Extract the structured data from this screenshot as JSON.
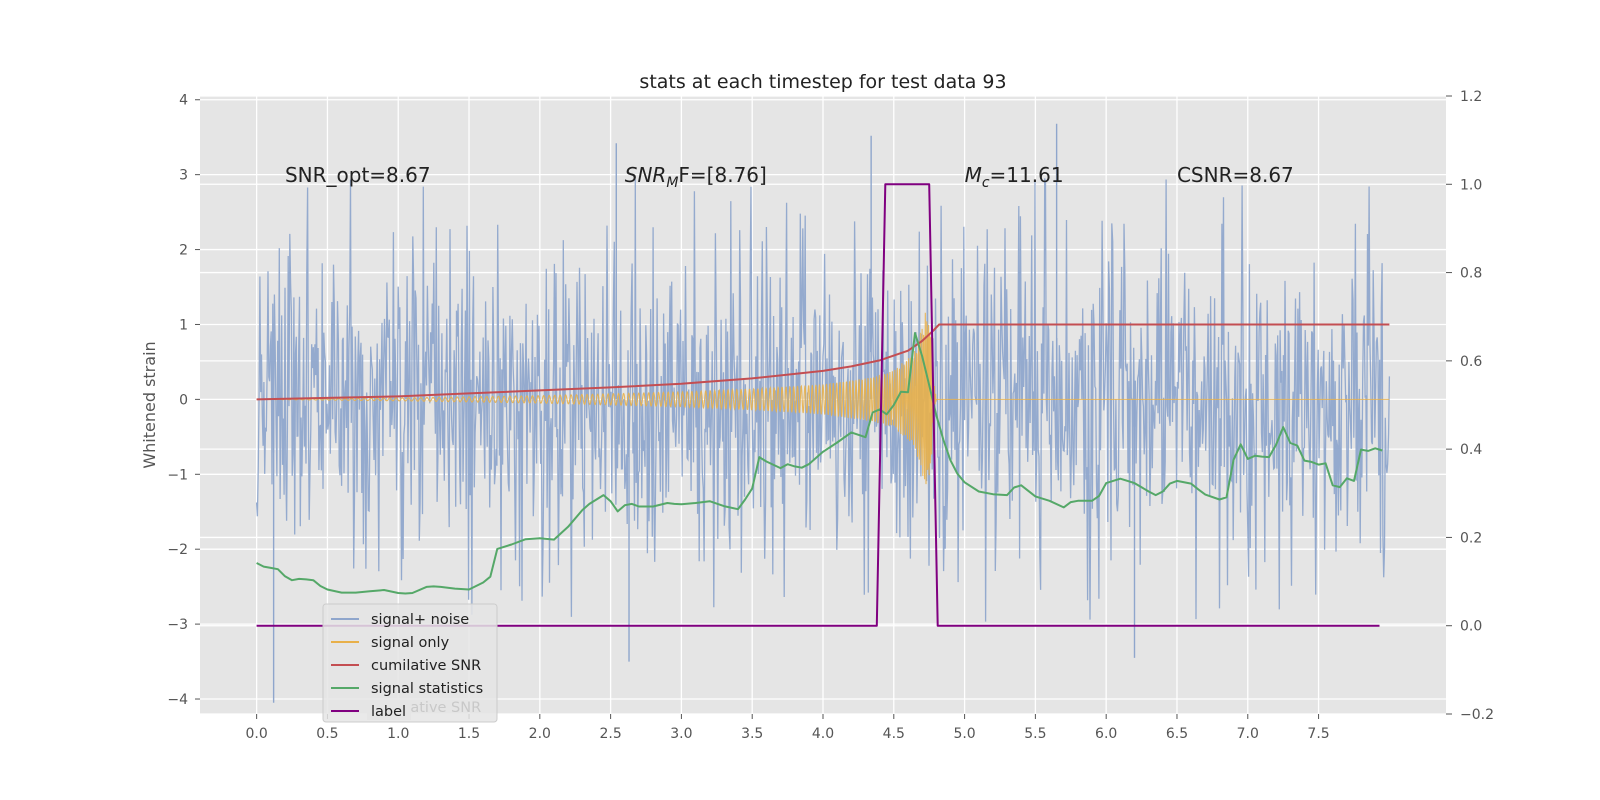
{
  "chart_data": {
    "type": "line",
    "title": "stats at each timestep for test data 93",
    "ylabel": "Whitened strain",
    "xlim": [
      -0.4,
      8.4
    ],
    "ylim": [
      -4.2,
      4.05
    ],
    "y2lim": [
      -0.2,
      1.2
    ],
    "xticks": [
      0.0,
      0.5,
      1.0,
      1.5,
      2.0,
      2.5,
      3.0,
      3.5,
      4.0,
      4.5,
      5.0,
      5.5,
      6.0,
      6.5,
      7.0,
      7.5
    ],
    "yticks": [
      -4,
      -3,
      -2,
      -1,
      0,
      1,
      2,
      3,
      4
    ],
    "y2ticks": [
      -0.2,
      0.0,
      0.2,
      0.4,
      0.6,
      0.8,
      1.0,
      1.2
    ],
    "grid": true,
    "legend_position": "lower-left",
    "annotations": [
      {
        "text": "SNR_opt=8.67",
        "x": 0.2,
        "y": 2.9
      },
      {
        "text": "F=[8.76]",
        "math_base": "SNR",
        "math_sub": "M",
        "x": 2.6,
        "y": 2.9
      },
      {
        "text": "=11.61",
        "math_base": "M",
        "math_sub": "c",
        "x": 5.0,
        "y": 2.9
      },
      {
        "text": "CSNR=8.67",
        "x": 6.5,
        "y": 2.9
      }
    ],
    "series": [
      {
        "name": "signal+ noise",
        "axis": "left",
        "color": "#8fa6cc",
        "noise_band": [
          -2.0,
          2.0
        ],
        "x_range": [
          0.0,
          8.0
        ],
        "outliers": [
          {
            "x": 0.12,
            "y": -4.05
          },
          {
            "x": 2.54,
            "y": 3.42
          },
          {
            "x": 4.34,
            "y": 3.52
          },
          {
            "x": 5.65,
            "y": 3.68
          },
          {
            "x": 6.2,
            "y": -3.45
          },
          {
            "x": 2.63,
            "y": -3.5
          }
        ]
      },
      {
        "name": "signal only",
        "axis": "left",
        "color": "#e8b04a",
        "envelope_x": [
          1.0,
          2.0,
          3.0,
          3.5,
          4.0,
          4.3,
          4.5,
          4.65,
          4.75,
          4.78,
          4.8,
          8.0
        ],
        "envelope_y": [
          0.02,
          0.05,
          0.1,
          0.14,
          0.2,
          0.28,
          0.38,
          0.65,
          1.35,
          0.3,
          0.0,
          0.0
        ]
      },
      {
        "name": "cumilative SNR",
        "axis": "left",
        "color": "#c44e52",
        "x": [
          0.0,
          0.5,
          1.0,
          1.5,
          2.0,
          2.5,
          3.0,
          3.5,
          4.0,
          4.2,
          4.4,
          4.6,
          4.7,
          4.78,
          4.82,
          8.0
        ],
        "y": [
          0.0,
          0.02,
          0.04,
          0.08,
          0.12,
          0.16,
          0.21,
          0.28,
          0.38,
          0.44,
          0.52,
          0.65,
          0.78,
          0.92,
          1.0,
          1.0
        ]
      },
      {
        "name": "signal statistics",
        "axis": "right",
        "color": "#55a868",
        "x": [
          0.0,
          0.05,
          0.1,
          0.15,
          0.2,
          0.25,
          0.3,
          0.35,
          0.4,
          0.45,
          0.5,
          0.6,
          0.7,
          0.8,
          0.9,
          1.0,
          1.05,
          1.1,
          1.2,
          1.25,
          1.3,
          1.4,
          1.5,
          1.6,
          1.65,
          1.7,
          1.8,
          1.9,
          2.0,
          2.1,
          2.2,
          2.3,
          2.35,
          2.45,
          2.5,
          2.55,
          2.6,
          2.65,
          2.7,
          2.8,
          2.9,
          2.95,
          3.0,
          3.1,
          3.2,
          3.3,
          3.4,
          3.45,
          3.5,
          3.55,
          3.6,
          3.7,
          3.75,
          3.8,
          3.85,
          3.9,
          4.0,
          4.1,
          4.2,
          4.3,
          4.35,
          4.4,
          4.45,
          4.5,
          4.55,
          4.6,
          4.65,
          4.7,
          4.75,
          4.8,
          4.85,
          4.9,
          4.95,
          5.0,
          5.1,
          5.2,
          5.3,
          5.35,
          5.4,
          5.5,
          5.6,
          5.7,
          5.75,
          5.8,
          5.9,
          5.95,
          6.0,
          6.1,
          6.2,
          6.3,
          6.35,
          6.4,
          6.45,
          6.5,
          6.6,
          6.65,
          6.7,
          6.8,
          6.85,
          6.9,
          6.95,
          7.0,
          7.05,
          7.1,
          7.15,
          7.2,
          7.25,
          7.3,
          7.35,
          7.4,
          7.45,
          7.5,
          7.55,
          7.6,
          7.65,
          7.7,
          7.75,
          7.8,
          7.85,
          7.9,
          7.95
        ],
        "y": [
          0.142,
          0.134,
          0.131,
          0.128,
          0.112,
          0.103,
          0.106,
          0.105,
          0.103,
          0.09,
          0.082,
          0.075,
          0.075,
          0.078,
          0.081,
          0.074,
          0.073,
          0.074,
          0.088,
          0.089,
          0.088,
          0.084,
          0.082,
          0.098,
          0.111,
          0.174,
          0.184,
          0.196,
          0.198,
          0.195,
          0.224,
          0.262,
          0.276,
          0.296,
          0.282,
          0.259,
          0.273,
          0.276,
          0.27,
          0.27,
          0.278,
          0.276,
          0.275,
          0.278,
          0.282,
          0.271,
          0.264,
          0.286,
          0.311,
          0.382,
          0.372,
          0.357,
          0.366,
          0.361,
          0.358,
          0.366,
          0.394,
          0.415,
          0.438,
          0.427,
          0.483,
          0.49,
          0.479,
          0.5,
          0.53,
          0.529,
          0.663,
          0.611,
          0.545,
          0.477,
          0.421,
          0.375,
          0.344,
          0.325,
          0.304,
          0.298,
          0.296,
          0.313,
          0.318,
          0.293,
          0.283,
          0.268,
          0.28,
          0.283,
          0.283,
          0.294,
          0.323,
          0.333,
          0.323,
          0.304,
          0.296,
          0.304,
          0.322,
          0.328,
          0.322,
          0.309,
          0.297,
          0.286,
          0.291,
          0.376,
          0.411,
          0.378,
          0.385,
          0.383,
          0.382,
          0.41,
          0.45,
          0.414,
          0.408,
          0.374,
          0.371,
          0.365,
          0.368,
          0.318,
          0.314,
          0.334,
          0.328,
          0.399,
          0.396,
          0.402,
          0.397
        ]
      },
      {
        "name": "label",
        "axis": "right",
        "color": "#800080",
        "x": [
          0.0,
          4.38,
          4.44,
          4.75,
          4.81,
          7.93
        ],
        "y": [
          0.0,
          0.0,
          1.0,
          1.0,
          0.0,
          0.0
        ]
      }
    ]
  },
  "legend_ghost_text": "cumilative SNR"
}
